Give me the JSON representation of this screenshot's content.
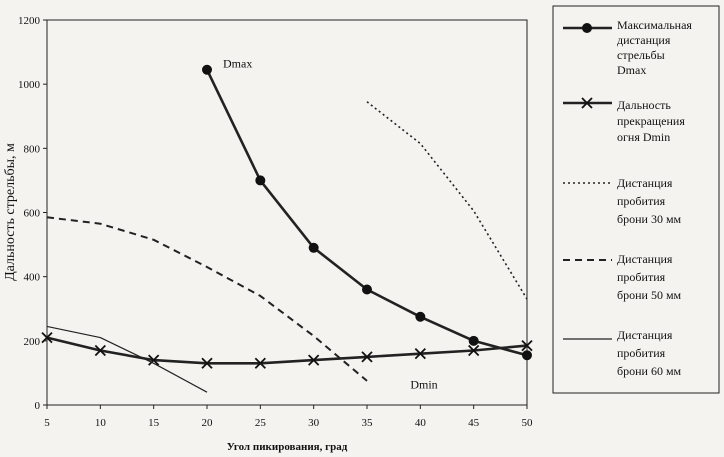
{
  "chart_data": {
    "type": "line",
    "xlabel": "Угол пикирования, град",
    "ylabel": "Дальность стрельбы, м",
    "xlim": [
      5,
      50
    ],
    "ylim": [
      0,
      1200
    ],
    "xticks": [
      5,
      10,
      15,
      20,
      25,
      30,
      35,
      40,
      45,
      50
    ],
    "yticks": [
      0,
      200,
      400,
      600,
      800,
      1000,
      1200
    ],
    "grid": false,
    "legend_position": "right",
    "series": [
      {
        "name": "Максимальная дистанция стрельбы Dmax",
        "legend_lines": [
          "Максимальная",
          "дистанция",
          "стрельбы",
          "Dmax"
        ],
        "style": "solid-thick",
        "marker": "circle",
        "points": [
          [
            20,
            1045
          ],
          [
            25,
            700
          ],
          [
            30,
            490
          ],
          [
            35,
            360
          ],
          [
            40,
            275
          ],
          [
            45,
            200
          ],
          [
            50,
            155
          ]
        ]
      },
      {
        "name": "Дальность прекращения огня Dmin",
        "legend_lines": [
          "Дальность",
          "прекращения",
          "огня Dmin"
        ],
        "style": "solid-thick",
        "marker": "x",
        "points": [
          [
            5,
            210
          ],
          [
            10,
            170
          ],
          [
            15,
            140
          ],
          [
            20,
            130
          ],
          [
            25,
            130
          ],
          [
            30,
            140
          ],
          [
            35,
            150
          ],
          [
            40,
            160
          ],
          [
            45,
            170
          ],
          [
            50,
            185
          ]
        ]
      },
      {
        "name": "Дистанция пробития брони 30 мм",
        "legend_lines": [
          "Дистанция",
          "пробития",
          "брони 30 мм"
        ],
        "style": "dotted",
        "marker": "none",
        "points": [
          [
            35,
            945
          ],
          [
            40,
            815
          ],
          [
            45,
            605
          ],
          [
            50,
            330
          ]
        ]
      },
      {
        "name": "Дистанция пробития брони 50 мм",
        "legend_lines": [
          "Дистанция",
          "пробития",
          "брони 50 мм"
        ],
        "style": "dashed",
        "marker": "none",
        "points": [
          [
            5,
            585
          ],
          [
            10,
            565
          ],
          [
            15,
            515
          ],
          [
            20,
            430
          ],
          [
            25,
            340
          ],
          [
            30,
            215
          ],
          [
            35,
            75
          ]
        ]
      },
      {
        "name": "Дистанция пробития брони 60 мм",
        "legend_lines": [
          "Дистанция",
          "пробития",
          "брони 60 мм"
        ],
        "style": "solid-thin",
        "marker": "none",
        "points": [
          [
            5,
            245
          ],
          [
            10,
            210
          ],
          [
            15,
            130
          ],
          [
            20,
            40
          ]
        ]
      }
    ],
    "annotations": [
      {
        "text": "Dmax",
        "x": 20,
        "y": 1045
      },
      {
        "text": "Dmin",
        "x": 40,
        "y": 130
      }
    ]
  }
}
